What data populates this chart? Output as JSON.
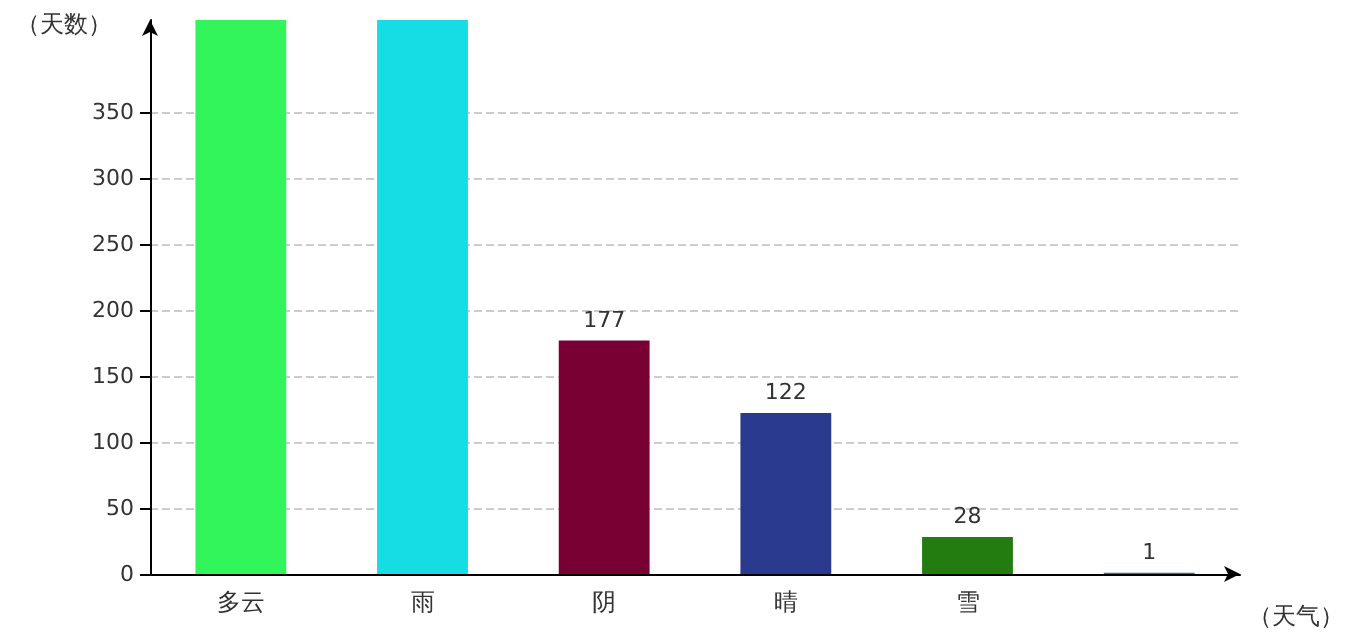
{
  "chart_data": {
    "type": "bar",
    "xlabel": "（天气）",
    "ylabel": "（天数）",
    "categories": [
      "多云",
      "雨",
      "阴",
      "晴",
      "雪",
      null
    ],
    "values": [
      420,
      420,
      177,
      122,
      28,
      1
    ],
    "colors": [
      "#32f55c",
      "#16dde3",
      "#780032",
      "#2a3a8e",
      "#237c0f",
      "#1a7a9a"
    ],
    "value_labels": [
      null,
      null,
      "177",
      "122",
      "28",
      "1"
    ],
    "ylim": [
      0,
      420
    ],
    "yticks": [
      0,
      50,
      100,
      150,
      200,
      250,
      300,
      350
    ],
    "grid": "y"
  }
}
